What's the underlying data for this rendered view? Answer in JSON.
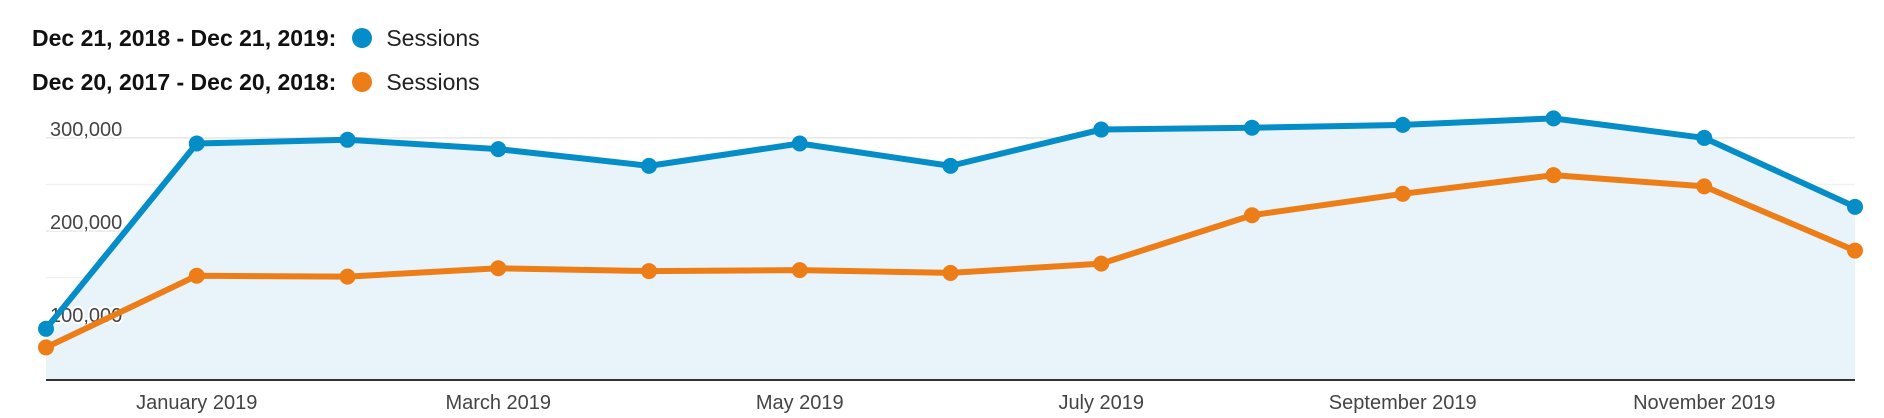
{
  "legend": {
    "items": [
      {
        "range": "Dec 21, 2018 - Dec 21, 2019:",
        "series": "Sessions",
        "color": "#058dc7"
      },
      {
        "range": "Dec 20, 2017 - Dec 20, 2018:",
        "series": "Sessions",
        "color": "#ed7e17"
      }
    ]
  },
  "chart_data": {
    "type": "line",
    "x_tick_labels": [
      "January 2019",
      "March 2019",
      "May 2019",
      "July 2019",
      "September 2019",
      "November 2019"
    ],
    "y_tick_labels": [
      "300,000",
      "200,000",
      "100,000"
    ],
    "ylim": [
      40000,
      330000
    ],
    "grid": true,
    "legend_position": "top-left",
    "x": [
      "2018-12",
      "2019-01",
      "2019-02",
      "2019-03",
      "2019-04",
      "2019-05",
      "2019-06",
      "2019-07",
      "2019-08",
      "2019-09",
      "2019-10",
      "2019-11",
      "2019-12"
    ],
    "x_ticks_at": [
      "2019-01",
      "2019-03",
      "2019-05",
      "2019-07",
      "2019-09",
      "2019-11"
    ],
    "series": [
      {
        "name": "Sessions",
        "color": "#058dc7",
        "filled": true,
        "values": [
          95000,
          294000,
          298000,
          288000,
          270000,
          294000,
          270000,
          309000,
          311000,
          314000,
          321000,
          300000,
          226000
        ]
      },
      {
        "name": "Sessions",
        "color": "#ed7e17",
        "filled": false,
        "values": [
          75000,
          152000,
          151000,
          160000,
          157000,
          158000,
          155000,
          165000,
          217000,
          240000,
          260000,
          248000,
          179000
        ]
      }
    ]
  }
}
